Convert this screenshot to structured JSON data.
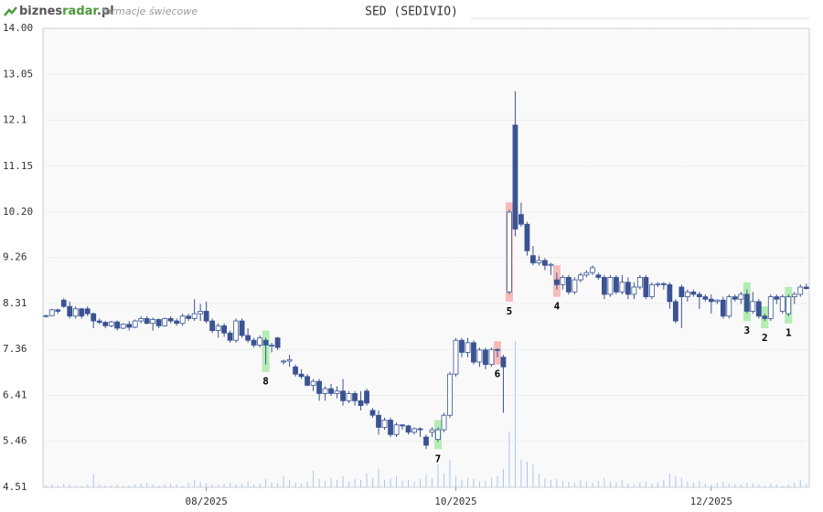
{
  "header": {
    "logo": [
      "biznes",
      "radar",
      ".pl"
    ],
    "tagline": "formacje świecowe"
  },
  "chart_data": {
    "type": "candlestick",
    "title": "SED (SEDIVIO)",
    "ylim": [
      4.51,
      14
    ],
    "yticks": [
      4.51,
      5.46,
      6.41,
      7.36,
      8.31,
      9.26,
      {
        "value": 10.2,
        "label": "10.20"
      },
      11.15,
      12.1,
      13.05,
      {
        "value": 14,
        "label": "14.00"
      }
    ],
    "xlim": [
      -0.5,
      128.5
    ],
    "xticks": [
      {
        "value": 27,
        "label": "08/2025"
      },
      {
        "value": 69,
        "label": "10/2025"
      },
      {
        "value": 112,
        "label": "12/2025"
      }
    ],
    "grid": true,
    "up_color": "#ffffff",
    "down_color": "#3b5393",
    "volume_color": "#a9c7ee",
    "ohlc": [
      [
        8.05,
        8.08,
        8.02,
        8.06
      ],
      [
        8.06,
        8.2,
        8.05,
        8.18
      ],
      [
        8.18,
        8.2,
        8.1,
        8.15
      ],
      [
        8.38,
        8.42,
        8.22,
        8.25
      ],
      [
        8.25,
        8.35,
        8.0,
        8.05
      ],
      [
        8.05,
        8.25,
        8.0,
        8.2
      ],
      [
        8.2,
        8.22,
        8.0,
        8.05
      ],
      [
        8.2,
        8.25,
        8.05,
        8.1
      ],
      [
        8.1,
        8.12,
        7.8,
        7.95
      ],
      [
        7.95,
        8.0,
        7.88,
        7.92
      ],
      [
        7.92,
        7.95,
        7.8,
        7.85
      ],
      [
        7.85,
        7.95,
        7.82,
        7.93
      ],
      [
        7.93,
        7.96,
        7.75,
        7.8
      ],
      [
        7.8,
        7.9,
        7.78,
        7.88
      ],
      [
        7.88,
        7.95,
        7.75,
        7.82
      ],
      [
        7.82,
        7.98,
        7.8,
        7.95
      ],
      [
        7.95,
        8.05,
        7.9,
        8.0
      ],
      [
        8.0,
        8.05,
        7.88,
        7.9
      ],
      [
        7.9,
        8.02,
        7.75,
        7.98
      ],
      [
        7.98,
        8.0,
        7.8,
        7.85
      ],
      [
        7.85,
        8.02,
        7.83,
        8.0
      ],
      [
        8.0,
        8.05,
        7.9,
        7.95
      ],
      [
        7.95,
        8.0,
        7.85,
        7.9
      ],
      [
        7.9,
        8.1,
        7.85,
        8.05
      ],
      [
        8.05,
        8.1,
        7.95,
        8.0
      ],
      [
        8.0,
        8.4,
        7.95,
        8.1
      ],
      [
        8.1,
        8.3,
        7.95,
        8.15
      ],
      [
        8.15,
        8.35,
        7.9,
        7.95
      ],
      [
        7.95,
        8.0,
        7.7,
        7.75
      ],
      [
        7.75,
        7.9,
        7.6,
        7.85
      ],
      [
        7.85,
        7.9,
        7.62,
        7.7
      ],
      [
        7.7,
        7.75,
        7.5,
        7.55
      ],
      [
        7.55,
        8.0,
        7.5,
        7.95
      ],
      [
        7.95,
        8.0,
        7.6,
        7.65
      ],
      [
        7.65,
        7.8,
        7.5,
        7.55
      ],
      [
        7.55,
        7.6,
        7.4,
        7.45
      ],
      [
        7.45,
        7.65,
        7.4,
        7.6
      ],
      [
        7.55,
        7.6,
        7.05,
        7.45
      ],
      [
        7.45,
        7.5,
        7.3,
        7.45
      ],
      [
        7.6,
        7.62,
        7.35,
        7.4
      ],
      [
        7.1,
        7.15,
        7.05,
        7.12
      ],
      [
        7.12,
        7.25,
        7.0,
        7.15
      ],
      [
        7.0,
        7.05,
        6.8,
        6.85
      ],
      [
        6.85,
        6.95,
        6.75,
        6.8
      ],
      [
        6.8,
        6.85,
        6.6,
        6.62
      ],
      [
        6.62,
        6.75,
        6.5,
        6.7
      ],
      [
        6.7,
        6.75,
        6.3,
        6.45
      ],
      [
        6.45,
        6.6,
        6.3,
        6.55
      ],
      [
        6.55,
        6.65,
        6.4,
        6.45
      ],
      [
        6.45,
        6.6,
        6.35,
        6.5
      ],
      [
        6.5,
        6.75,
        6.2,
        6.3
      ],
      [
        6.3,
        6.5,
        6.25,
        6.45
      ],
      [
        6.45,
        6.5,
        6.2,
        6.3
      ],
      [
        6.3,
        6.5,
        6.1,
        6.2
      ],
      [
        6.5,
        6.55,
        6.2,
        6.25
      ],
      [
        6.1,
        6.15,
        5.95,
        6.0
      ],
      [
        6.0,
        6.1,
        5.6,
        5.75
      ],
      [
        5.75,
        5.95,
        5.7,
        5.9
      ],
      [
        5.9,
        5.95,
        5.55,
        5.6
      ],
      [
        5.6,
        5.85,
        5.55,
        5.8
      ],
      [
        5.8,
        5.82,
        5.7,
        5.78
      ],
      [
        5.78,
        5.8,
        5.6,
        5.65
      ],
      [
        5.65,
        5.75,
        5.6,
        5.72
      ],
      [
        5.72,
        5.75,
        5.55,
        5.7
      ],
      [
        5.55,
        5.6,
        5.3,
        5.38
      ],
      [
        5.65,
        5.75,
        5.55,
        5.7
      ],
      [
        5.5,
        5.75,
        5.45,
        5.7
      ],
      [
        5.7,
        6.05,
        5.65,
        6.0
      ],
      [
        6.0,
        6.9,
        5.95,
        6.85
      ],
      [
        6.85,
        7.6,
        6.8,
        7.55
      ],
      [
        7.55,
        7.6,
        7.2,
        7.3
      ],
      [
        7.3,
        7.6,
        7.2,
        7.5
      ],
      [
        7.5,
        7.55,
        7.05,
        7.1
      ],
      [
        7.1,
        7.4,
        7.0,
        7.35
      ],
      [
        7.35,
        7.4,
        6.95,
        7.05
      ],
      [
        7.05,
        7.4,
        7.0,
        7.36
      ],
      [
        7.36,
        7.38,
        7.2,
        7.35
      ],
      [
        7.2,
        7.25,
        6.05,
        7.0
      ],
      [
        8.55,
        10.25,
        8.5,
        10.2
      ],
      [
        12.0,
        12.7,
        9.7,
        9.85
      ],
      [
        10.15,
        10.4,
        9.9,
        9.95
      ],
      [
        9.95,
        10.0,
        9.3,
        9.4
      ],
      [
        9.3,
        9.5,
        9.1,
        9.15
      ],
      [
        9.15,
        9.3,
        9.1,
        9.2
      ],
      [
        9.2,
        9.25,
        9.0,
        9.1
      ],
      [
        9.1,
        9.15,
        8.9,
        9.12
      ],
      [
        8.8,
        8.95,
        8.6,
        8.7
      ],
      [
        8.7,
        8.9,
        8.6,
        8.85
      ],
      [
        8.85,
        8.9,
        8.5,
        8.55
      ],
      [
        8.55,
        8.85,
        8.5,
        8.8
      ],
      [
        8.8,
        8.95,
        8.75,
        8.9
      ],
      [
        8.9,
        9.0,
        8.85,
        8.95
      ],
      [
        8.95,
        9.1,
        8.9,
        9.05
      ],
      [
        8.9,
        8.95,
        8.8,
        8.85
      ],
      [
        8.85,
        8.9,
        8.4,
        8.5
      ],
      [
        8.5,
        8.9,
        8.45,
        8.85
      ],
      [
        8.85,
        8.9,
        8.5,
        8.55
      ],
      [
        8.55,
        8.9,
        8.5,
        8.75
      ],
      [
        8.75,
        8.85,
        8.4,
        8.5
      ],
      [
        8.5,
        8.75,
        8.4,
        8.65
      ],
      [
        8.65,
        8.9,
        8.6,
        8.85
      ],
      [
        8.85,
        8.9,
        8.4,
        8.45
      ],
      [
        8.45,
        8.75,
        8.4,
        8.7
      ],
      [
        8.7,
        8.75,
        8.65,
        8.72
      ],
      [
        8.72,
        8.75,
        8.6,
        8.7
      ],
      [
        8.7,
        8.75,
        8.2,
        8.35
      ],
      [
        8.35,
        8.4,
        7.9,
        7.95
      ],
      [
        8.65,
        8.7,
        7.8,
        8.45
      ],
      [
        8.45,
        8.6,
        8.35,
        8.55
      ],
      [
        8.55,
        8.6,
        8.45,
        8.5
      ],
      [
        8.5,
        8.55,
        8.2,
        8.45
      ],
      [
        8.45,
        8.5,
        8.35,
        8.4
      ],
      [
        8.4,
        8.5,
        8.1,
        8.35
      ],
      [
        8.35,
        8.4,
        8.3,
        8.38
      ],
      [
        8.38,
        8.45,
        8.0,
        8.05
      ],
      [
        8.05,
        8.5,
        8.0,
        8.45
      ],
      [
        8.45,
        8.5,
        8.35,
        8.4
      ],
      [
        8.4,
        8.55,
        8.3,
        8.5
      ],
      [
        8.5,
        8.6,
        8.1,
        8.15
      ],
      [
        8.15,
        8.55,
        8.1,
        8.35
      ],
      [
        8.35,
        8.4,
        8.0,
        8.05
      ],
      [
        8.05,
        8.1,
        7.95,
        8.0
      ],
      [
        8.0,
        8.5,
        7.95,
        8.45
      ],
      [
        8.45,
        8.5,
        8.3,
        8.4
      ],
      [
        8.15,
        8.5,
        8.1,
        8.45
      ],
      [
        8.1,
        8.5,
        8.05,
        8.45
      ],
      [
        8.45,
        8.55,
        8.3,
        8.5
      ],
      [
        8.5,
        8.7,
        8.45,
        8.65
      ],
      [
        8.65,
        8.72,
        8.6,
        8.62
      ]
    ],
    "volume": [
      2,
      3,
      2,
      4,
      3,
      2,
      2,
      3,
      14,
      3,
      2,
      2,
      3,
      2,
      2,
      3,
      4,
      5,
      3,
      2,
      3,
      4,
      3,
      2,
      5,
      8,
      6,
      4,
      3,
      3,
      4,
      5,
      3,
      4,
      6,
      3,
      4,
      9,
      5,
      4,
      12,
      8,
      5,
      4,
      6,
      18,
      9,
      7,
      10,
      8,
      12,
      6,
      9,
      8,
      15,
      10,
      20,
      8,
      10,
      12,
      7,
      8,
      6,
      9,
      14,
      10,
      25,
      15,
      30,
      12,
      8,
      10,
      9,
      6,
      7,
      10,
      12,
      20,
      60,
      158,
      30,
      28,
      25,
      15,
      10,
      8,
      9,
      7,
      6,
      5,
      8,
      6,
      5,
      7,
      10,
      6,
      5,
      8,
      4,
      3,
      5,
      6,
      4,
      5,
      8,
      15,
      12,
      10,
      6,
      5,
      7,
      4,
      3,
      5,
      6,
      4,
      3,
      3,
      5,
      4,
      3,
      2,
      4,
      3,
      2,
      3,
      5,
      8,
      4
    ],
    "patterns": [
      {
        "label": "8",
        "x": 37,
        "color": "#b4ecb4"
      },
      {
        "label": "7",
        "x": 66,
        "color": "#b4ecb4"
      },
      {
        "label": "6",
        "x": 76,
        "color": "#f5bcbc"
      },
      {
        "label": "5",
        "x": 78,
        "color": "#f5bcbc"
      },
      {
        "label": "4",
        "x": 86,
        "color": "#f5bcbc"
      },
      {
        "label": "3",
        "x": 118,
        "color": "#b4ecb4"
      },
      {
        "label": "2",
        "x": 121,
        "color": "#b4ecb4"
      },
      {
        "label": "1",
        "x": 125,
        "color": "#b4ecb4"
      }
    ]
  }
}
